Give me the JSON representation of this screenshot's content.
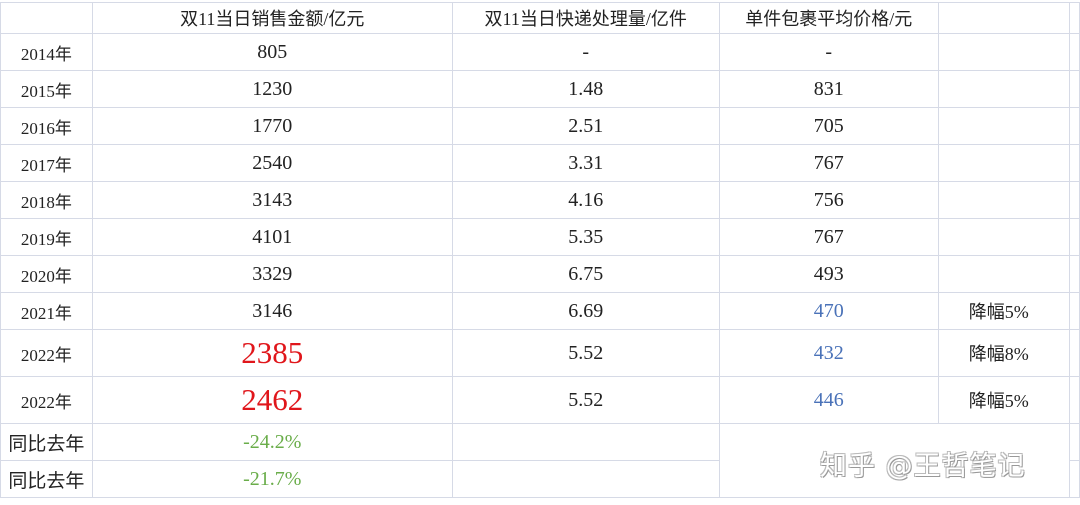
{
  "headers": [
    "",
    "双11当日销售金额/亿元",
    "双11当日快递处理量/亿件",
    "单件包裹平均价格/元",
    ""
  ],
  "rows": [
    {
      "year": "2014年",
      "sales": "805",
      "parcels": "-",
      "price": "-",
      "note": ""
    },
    {
      "year": "2015年",
      "sales": "1230",
      "parcels": "1.48",
      "price": "831",
      "note": ""
    },
    {
      "year": "2016年",
      "sales": "1770",
      "parcels": "2.51",
      "price": "705",
      "note": ""
    },
    {
      "year": "2017年",
      "sales": "2540",
      "parcels": "3.31",
      "price": "767",
      "note": ""
    },
    {
      "year": "2018年",
      "sales": "3143",
      "parcels": "4.16",
      "price": "756",
      "note": ""
    },
    {
      "year": "2019年",
      "sales": "4101",
      "parcels": "5.35",
      "price": "767",
      "note": ""
    },
    {
      "year": "2020年",
      "sales": "3329",
      "parcels": "6.75",
      "price": "493",
      "note": ""
    },
    {
      "year": "2021年",
      "sales": "3146",
      "parcels": "6.69",
      "price": "470",
      "note": "降幅5%"
    },
    {
      "year": "2022年",
      "sales": "2385",
      "parcels": "5.52",
      "price": "432",
      "note": "降幅8%"
    },
    {
      "year": "2022年",
      "sales": "2462",
      "parcels": "5.52",
      "price": "446",
      "note": "降幅5%"
    }
  ],
  "yoy": [
    {
      "label": "同比去年",
      "value": "-24.2%"
    },
    {
      "label": "同比去年",
      "value": "-21.7%"
    }
  ],
  "watermark": "知乎 @王哲笔记",
  "colors": {
    "highlight_red": "#e0161b",
    "price_blue": "#4a72b8",
    "yoy_green": "#6aad4a",
    "grid": "#d6dae6"
  }
}
